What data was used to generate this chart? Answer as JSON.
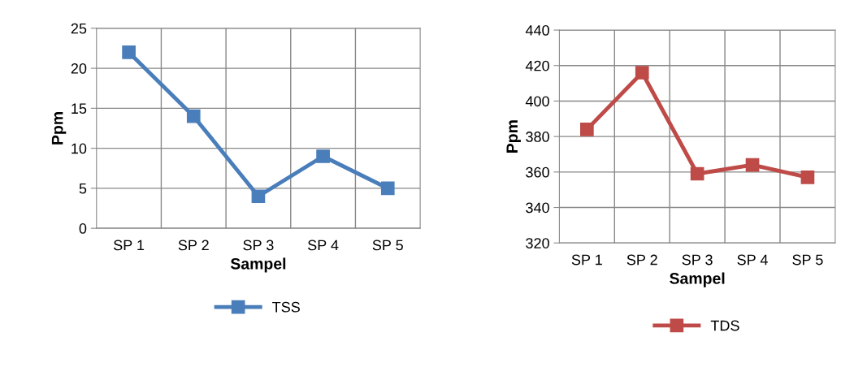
{
  "chart_data": [
    {
      "type": "line",
      "xlabel": "Sampel",
      "ylabel": "Ppm",
      "categories": [
        "SP 1",
        "SP 2",
        "SP 3",
        "SP 4",
        "SP 5"
      ],
      "series": [
        {
          "name": "TSS",
          "color": "#4a7ebb",
          "values": [
            22,
            14,
            4,
            9,
            5
          ]
        }
      ],
      "ylim": [
        0,
        25
      ],
      "yticks": [
        0,
        5,
        10,
        15,
        20,
        25
      ],
      "grid": true,
      "legend": "bottom",
      "marker": "square",
      "line_style": "solid"
    },
    {
      "type": "line",
      "xlabel": "Sampel",
      "ylabel": "Ppm",
      "categories": [
        "SP 1",
        "SP 2",
        "SP 3",
        "SP 4",
        "SP 5"
      ],
      "series": [
        {
          "name": "TDS",
          "color": "#be4b48",
          "values": [
            384,
            416,
            359,
            364,
            357
          ]
        }
      ],
      "ylim": [
        320,
        440
      ],
      "yticks": [
        320,
        340,
        360,
        380,
        400,
        420,
        440
      ],
      "grid": true,
      "legend": "bottom",
      "marker": "square",
      "line_style": "solid"
    }
  ]
}
